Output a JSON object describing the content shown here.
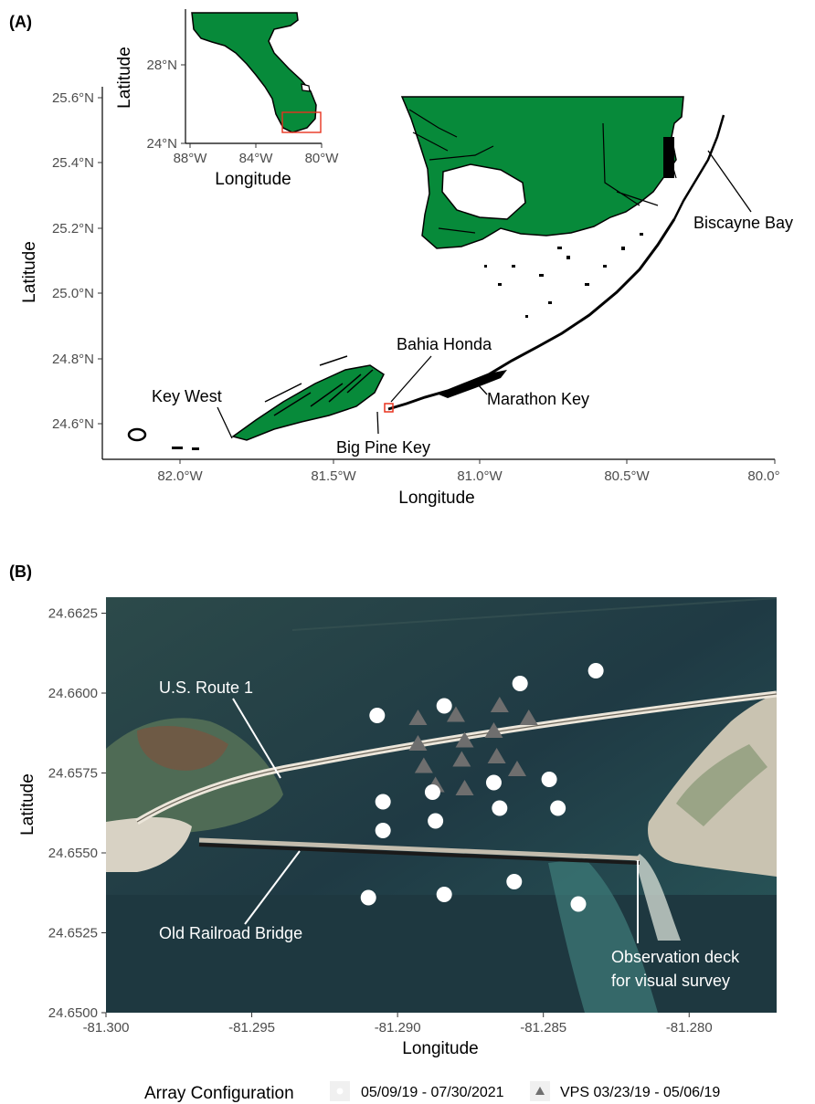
{
  "panelA": {
    "label": "(A)",
    "x_ticks": [
      "82.0°W",
      "81.5°W",
      "81.0°W",
      "80.5°W",
      "80.0°"
    ],
    "y_ticks": [
      "25.6°N",
      "25.4°N",
      "25.2°N",
      "25.0°N",
      "24.8°N",
      "24.6°N"
    ],
    "xlabel": "Longitude",
    "ylabel": "Latitude",
    "places": {
      "biscayne": "Biscayne Bay",
      "bahia": "Bahia Honda",
      "keywest": "Key West",
      "marathon": "Marathon Key",
      "bigpine": "Big Pine Key"
    },
    "land_color": "#078a3a",
    "highlight_color": "#e8321e",
    "inset": {
      "x_ticks": [
        "88°W",
        "84°W",
        "80°W"
      ],
      "y_ticks": [
        "28°N",
        "24°N"
      ],
      "xlabel": "Longitude",
      "ylabel": "Latitude"
    }
  },
  "panelB": {
    "label": "(B)",
    "x_ticks": [
      "-81.300",
      "-81.295",
      "-81.290",
      "-81.285",
      "-81.280"
    ],
    "y_ticks": [
      "24.6625",
      "24.6600",
      "24.6575",
      "24.6550",
      "24.6525",
      "24.6500"
    ],
    "xlabel": "Longitude",
    "ylabel": "Latitude",
    "annotations": {
      "route1": "U.S. Route 1",
      "railroad": "Old Railroad Bridge",
      "deck_line1": "Observation deck",
      "deck_line2": "for visual survey"
    },
    "xlim": [
      -81.3,
      -81.277
    ],
    "ylim": [
      24.65,
      24.663
    ],
    "receivers": [
      [
        -81.2832,
        24.6607
      ],
      [
        -81.2858,
        24.6603
      ],
      [
        -81.2907,
        24.6593
      ],
      [
        -81.2884,
        24.6596
      ],
      [
        -81.2848,
        24.6573
      ],
      [
        -81.2888,
        24.6569
      ],
      [
        -81.2867,
        24.6572
      ],
      [
        -81.2905,
        24.6566
      ],
      [
        -81.2845,
        24.6564
      ],
      [
        -81.2865,
        24.6564
      ],
      [
        -81.2887,
        24.656
      ],
      [
        -81.2905,
        24.6557
      ],
      [
        -81.286,
        24.6541
      ],
      [
        -81.2884,
        24.6537
      ],
      [
        -81.291,
        24.6536
      ],
      [
        -81.2838,
        24.6534
      ]
    ],
    "vps_stations": [
      [
        -81.2893,
        24.6592
      ],
      [
        -81.288,
        24.6593
      ],
      [
        -81.2865,
        24.6596
      ],
      [
        -81.2855,
        24.6592
      ],
      [
        -81.2893,
        24.6584
      ],
      [
        -81.2877,
        24.6585
      ],
      [
        -81.2867,
        24.6588
      ],
      [
        -81.2891,
        24.6577
      ],
      [
        -81.2878,
        24.6579
      ],
      [
        -81.2866,
        24.658
      ],
      [
        -81.2859,
        24.6576
      ],
      [
        -81.2887,
        24.6571
      ],
      [
        -81.2877,
        24.657
      ]
    ]
  },
  "legend": {
    "title": "Array Configuration",
    "items": [
      "05/09/19 - 07/30/2021",
      "VPS 03/23/19 - 05/06/19"
    ]
  }
}
